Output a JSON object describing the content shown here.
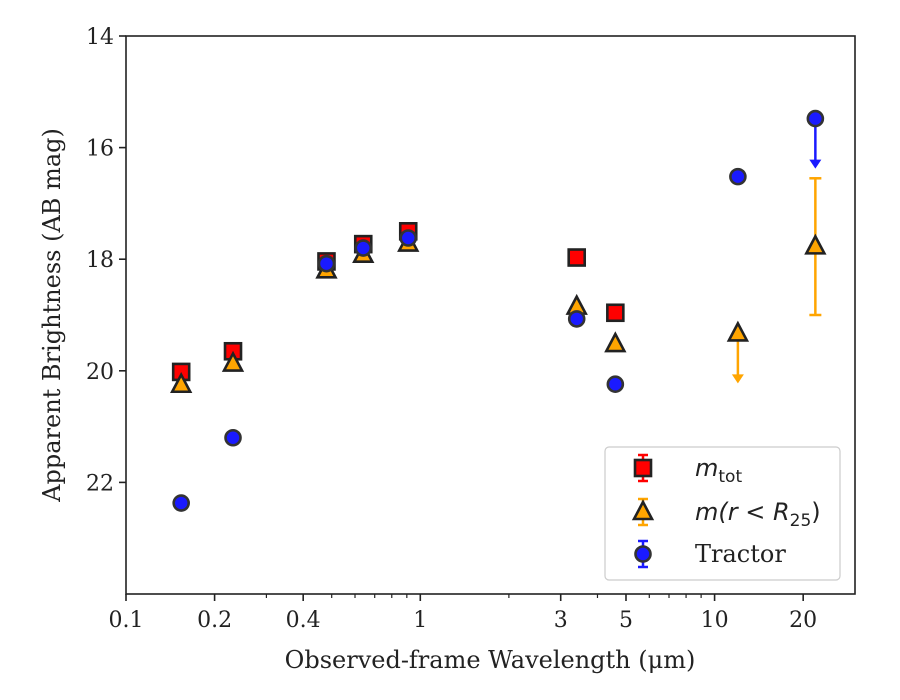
{
  "chart_data": {
    "type": "scatter",
    "xlabel": "Observed-frame Wavelength (μm)",
    "ylabel": "Apparent Brightness (AB mag)",
    "xscale": "log",
    "xlim": [
      0.1,
      30
    ],
    "ylim": [
      24.0,
      14.0
    ],
    "y_inverted": true,
    "x_ticks": [
      0.1,
      0.2,
      0.4,
      1,
      3,
      5,
      10,
      20
    ],
    "x_tick_labels": [
      "0.1",
      "0.2",
      "0.4",
      "1",
      "3",
      "5",
      "10",
      "20"
    ],
    "y_ticks": [
      14,
      16,
      18,
      20,
      22
    ],
    "y_tick_labels": [
      "14",
      "16",
      "18",
      "20",
      "22"
    ],
    "legend_position": "lower-right",
    "series": [
      {
        "label_main": "m",
        "label_sub": "tot",
        "marker": "square",
        "color": "#ff0000",
        "edge_color": "#222222",
        "points": [
          {
            "x": 0.154,
            "y": 20.02
          },
          {
            "x": 0.231,
            "y": 19.65
          },
          {
            "x": 0.48,
            "y": 18.04
          },
          {
            "x": 0.64,
            "y": 17.73
          },
          {
            "x": 0.91,
            "y": 17.5
          },
          {
            "x": 3.4,
            "y": 17.97
          },
          {
            "x": 4.6,
            "y": 18.96
          }
        ]
      },
      {
        "label_main": "m(r < R",
        "label_sub": "25",
        "label_close": ")",
        "marker": "triangle",
        "color": "#ffa500",
        "edge_color": "#222222",
        "points": [
          {
            "x": 0.154,
            "y": 20.25
          },
          {
            "x": 0.231,
            "y": 19.87
          },
          {
            "x": 0.48,
            "y": 18.2
          },
          {
            "x": 0.64,
            "y": 17.92
          },
          {
            "x": 0.91,
            "y": 17.72
          },
          {
            "x": 3.4,
            "y": 18.85
          },
          {
            "x": 4.6,
            "y": 19.52
          },
          {
            "x": 12.0,
            "y": 19.33,
            "upper_limit": true
          },
          {
            "x": 22.0,
            "y": 17.77,
            "yerr_low": 16.55,
            "yerr_high": 19.0
          }
        ]
      },
      {
        "label_main": "Tractor",
        "marker": "circle",
        "color": "#1a1aff",
        "edge_color": "#333333",
        "points": [
          {
            "x": 0.154,
            "y": 22.37
          },
          {
            "x": 0.231,
            "y": 21.2
          },
          {
            "x": 0.48,
            "y": 18.08
          },
          {
            "x": 0.64,
            "y": 17.8
          },
          {
            "x": 0.91,
            "y": 17.62
          },
          {
            "x": 3.4,
            "y": 19.07
          },
          {
            "x": 4.6,
            "y": 20.24
          },
          {
            "x": 12.0,
            "y": 16.52
          },
          {
            "x": 22.0,
            "y": 15.48,
            "upper_limit": true
          }
        ]
      }
    ]
  }
}
